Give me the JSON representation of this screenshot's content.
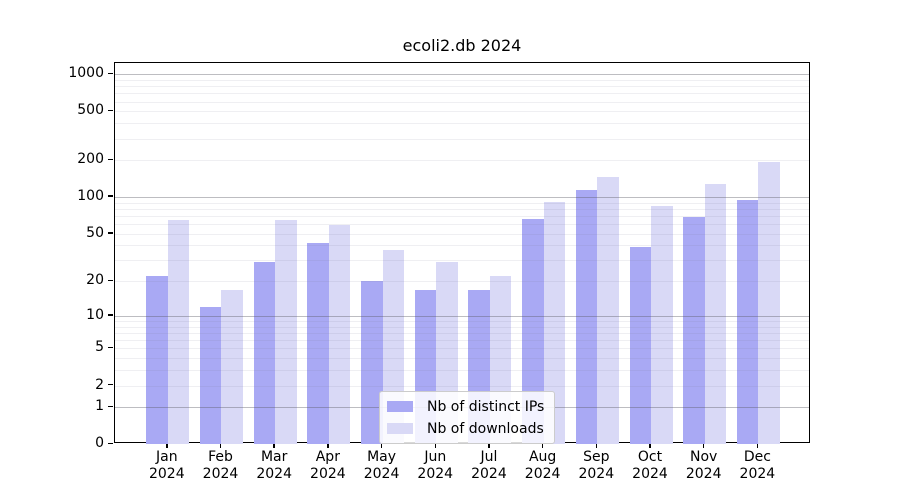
{
  "title": "ecoli2.db 2024",
  "chart_data": {
    "type": "bar",
    "title": "ecoli2.db 2024",
    "categories": [
      "Jan 2024",
      "Feb 2024",
      "Mar 2024",
      "Apr 2024",
      "May 2024",
      "Jun 2024",
      "Jul 2024",
      "Aug 2024",
      "Sep 2024",
      "Oct 2024",
      "Nov 2024",
      "Dec 2024"
    ],
    "series": [
      {
        "name": "Nb of distinct IPs",
        "color": "#a9a9f4",
        "values": [
          22,
          12,
          29,
          42,
          20,
          17,
          17,
          66,
          115,
          39,
          69,
          95
        ]
      },
      {
        "name": "Nb of downloads",
        "color": "#d9d9f6",
        "values": [
          65,
          17,
          65,
          59,
          37,
          29,
          22,
          91,
          147,
          84,
          128,
          194
        ]
      }
    ],
    "xlabel": "",
    "ylabel": "",
    "yscale": "log1p",
    "ylim": [
      0,
      1236
    ],
    "y_ticks": [
      0,
      1,
      2,
      5,
      10,
      20,
      50,
      100,
      200,
      500,
      1000
    ],
    "y_gridlines_major": [
      1,
      10,
      100,
      1000
    ],
    "y_gridlines_minor": [
      2,
      3,
      4,
      5,
      6,
      7,
      8,
      9,
      20,
      30,
      40,
      50,
      60,
      70,
      80,
      90,
      200,
      300,
      400,
      500,
      600,
      700,
      800,
      900
    ],
    "grid": true,
    "legend_position": "lower center"
  }
}
